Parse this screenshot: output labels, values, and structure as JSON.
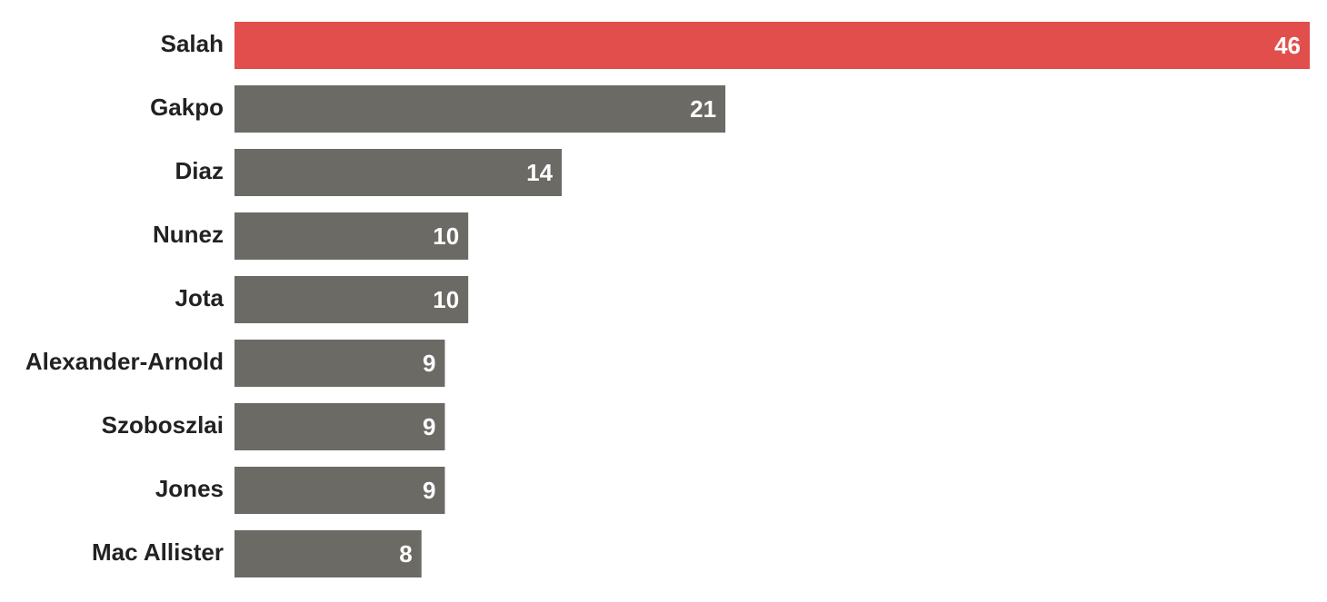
{
  "chart_data": {
    "type": "bar",
    "orientation": "horizontal",
    "categories": [
      "Salah",
      "Gakpo",
      "Diaz",
      "Nunez",
      "Jota",
      "Alexander-Arnold",
      "Szoboszlai",
      "Jones",
      "Mac Allister"
    ],
    "values": [
      46,
      21,
      14,
      10,
      10,
      9,
      9,
      9,
      8
    ],
    "colors": [
      "#e24e4b",
      "#6b6a65",
      "#6b6a65",
      "#6b6a65",
      "#6b6a65",
      "#6b6a65",
      "#6b6a65",
      "#6b6a65",
      "#6b6a65"
    ]
  }
}
